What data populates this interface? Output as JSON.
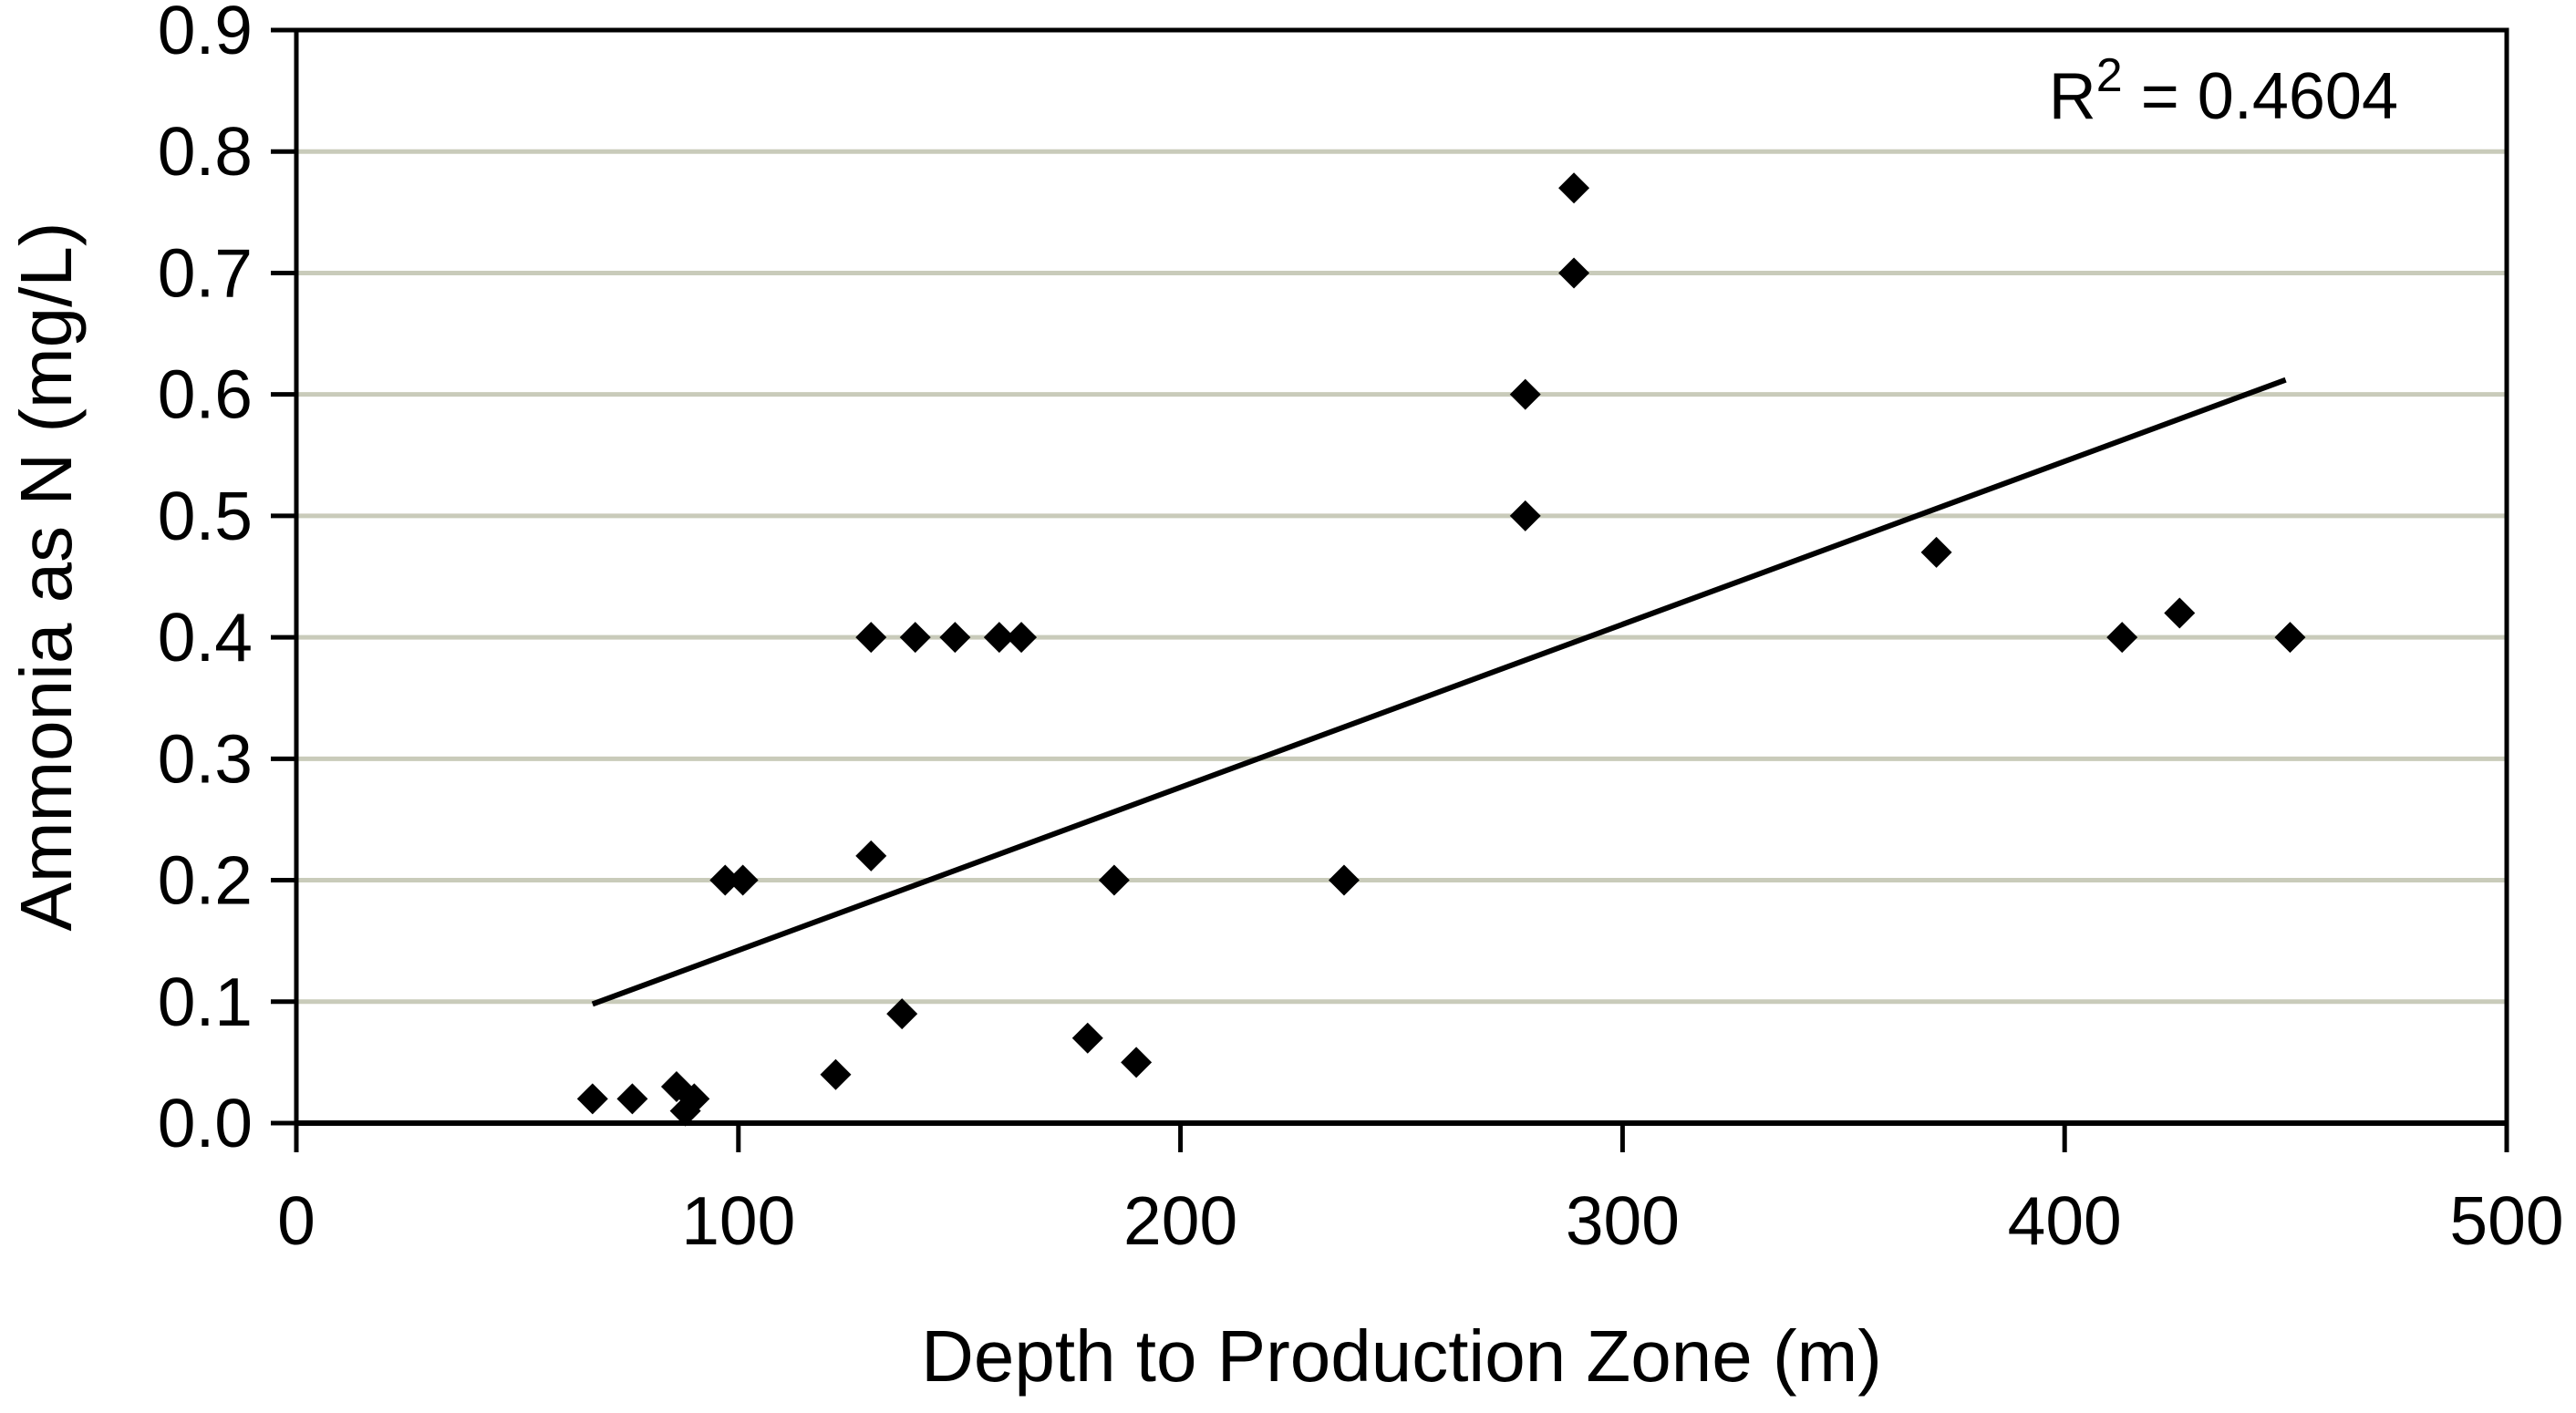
{
  "chart_data": {
    "type": "scatter",
    "title": "",
    "xlabel": "Depth to Production Zone (m)",
    "ylabel": "Ammonia as N (mg/L)",
    "xlim": [
      0,
      500
    ],
    "ylim": [
      0,
      0.9
    ],
    "x_ticks": [
      0,
      100,
      200,
      300,
      400,
      500
    ],
    "y_ticks": [
      0.0,
      0.1,
      0.2,
      0.3,
      0.4,
      0.5,
      0.6,
      0.7,
      0.8,
      0.9
    ],
    "y_tick_decimals": 1,
    "grid": "horizontal-only",
    "legend_position": "none",
    "marker": "diamond",
    "annotation": {
      "text_plain": "R2 = 0.4604",
      "base": "R",
      "superscript": "2",
      "rest": " = 0.4604",
      "r_squared": 0.4604
    },
    "points": [
      [
        67,
        0.02
      ],
      [
        76,
        0.02
      ],
      [
        86,
        0.03
      ],
      [
        88,
        0.01
      ],
      [
        90,
        0.02
      ],
      [
        97,
        0.2
      ],
      [
        101,
        0.2
      ],
      [
        122,
        0.04
      ],
      [
        130,
        0.22
      ],
      [
        130,
        0.4
      ],
      [
        137,
        0.09
      ],
      [
        140,
        0.4
      ],
      [
        149,
        0.4
      ],
      [
        159,
        0.4
      ],
      [
        164,
        0.4
      ],
      [
        179,
        0.07
      ],
      [
        185,
        0.2
      ],
      [
        190,
        0.05
      ],
      [
        237,
        0.2
      ],
      [
        278,
        0.5
      ],
      [
        278,
        0.6
      ],
      [
        289,
        0.7
      ],
      [
        289,
        0.77
      ],
      [
        371,
        0.47
      ],
      [
        413,
        0.4
      ],
      [
        426,
        0.42
      ],
      [
        451,
        0.4
      ]
    ],
    "trendline": {
      "x1": 67,
      "y1": 0.098,
      "x2": 450,
      "y2": 0.612,
      "style": "solid"
    },
    "colors": {
      "point": "#000000",
      "trendline": "#000000",
      "axis": "#000000",
      "grid": "#c9cbba",
      "text": "#000000",
      "background": "#ffffff"
    }
  }
}
